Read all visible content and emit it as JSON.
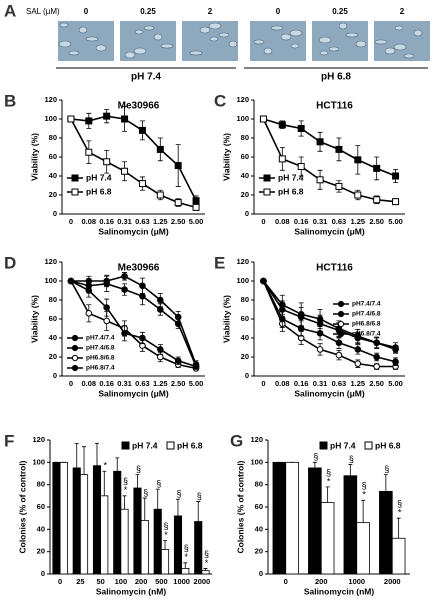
{
  "panel_a": {
    "label": "A",
    "sal_label": "SAL (μM)",
    "concentrations": [
      "0",
      "0.25",
      "2",
      "0",
      "0.25",
      "2"
    ],
    "groups": [
      "pH 7.4",
      "pH 6.8"
    ]
  },
  "chart_data": [
    {
      "type": "line",
      "panel": "B",
      "title": "Me30966",
      "x_label": "Salinomycin (μM)",
      "y_label": "Viability (%)",
      "categories": [
        "0",
        "0.08",
        "0.16",
        "0.31",
        "0.63",
        "1.25",
        "2.50",
        "5.00"
      ],
      "ylim": [
        0,
        120
      ],
      "yticks": [
        0,
        20,
        40,
        60,
        80,
        100,
        120
      ],
      "legend": "lower left",
      "series": [
        {
          "name": "pH 7.4",
          "color": "#000000",
          "marker": "square",
          "fill": "#000000",
          "values": [
            100,
            98,
            103,
            100,
            88,
            68,
            51,
            14
          ],
          "errors": [
            0,
            8,
            7,
            13,
            10,
            12,
            22,
            5
          ]
        },
        {
          "name": "pH 6.8",
          "color": "#000000",
          "marker": "square",
          "fill": "#ffffff",
          "values": [
            100,
            65,
            55,
            45,
            32,
            20,
            12,
            7
          ],
          "errors": [
            0,
            12,
            12,
            10,
            7,
            5,
            4,
            3
          ]
        }
      ]
    },
    {
      "type": "line",
      "panel": "C",
      "title": "HCT116",
      "x_label": "Salinomycin (μM)",
      "y_label": "Viability (%)",
      "categories": [
        "0",
        "0.08",
        "0.16",
        "0.31",
        "0.63",
        "1.25",
        "2.50",
        "5.00"
      ],
      "ylim": [
        0,
        120
      ],
      "yticks": [
        0,
        20,
        40,
        60,
        80,
        100,
        120
      ],
      "legend": "lower left",
      "series": [
        {
          "name": "pH 7.4",
          "color": "#000000",
          "marker": "square",
          "fill": "#000000",
          "values": [
            100,
            94,
            90,
            76,
            68,
            57,
            48,
            40
          ],
          "errors": [
            0,
            4,
            8,
            10,
            12,
            15,
            12,
            7
          ]
        },
        {
          "name": "pH 6.8",
          "color": "#000000",
          "marker": "square",
          "fill": "#ffffff",
          "values": [
            100,
            58,
            50,
            36,
            29,
            20,
            15,
            13
          ],
          "errors": [
            0,
            12,
            10,
            10,
            6,
            5,
            4,
            3
          ]
        }
      ]
    },
    {
      "type": "line",
      "panel": "D",
      "title": "Me30966",
      "x_label": "Salinomycin (μM)",
      "y_label": "Viability (%)",
      "categories": [
        "0",
        "0.08",
        "0.16",
        "0.31",
        "0.63",
        "1.25",
        "2.50",
        "5.00"
      ],
      "ylim": [
        0,
        120
      ],
      "yticks": [
        0,
        20,
        40,
        60,
        80,
        100,
        120
      ],
      "legend": "lower left",
      "series": [
        {
          "name": "pH7.4/7.4",
          "color": "#000000",
          "marker": "circle",
          "fill": "#000000",
          "values": [
            100,
            100,
            100,
            105,
            95,
            80,
            62,
            12
          ],
          "errors": [
            0,
            5,
            6,
            4,
            8,
            7,
            6,
            4
          ]
        },
        {
          "name": "pH7.4/6.8",
          "color": "#000000",
          "marker": "circle",
          "fill": "#000000",
          "values": [
            100,
            95,
            97,
            91,
            84,
            70,
            55,
            10
          ],
          "errors": [
            0,
            6,
            8,
            6,
            9,
            6,
            5,
            3
          ]
        },
        {
          "name": "pH6.8/6.8",
          "color": "#000000",
          "marker": "circle",
          "fill": "#ffffff",
          "values": [
            100,
            66,
            58,
            50,
            32,
            20,
            12,
            8
          ],
          "errors": [
            0,
            9,
            10,
            8,
            6,
            5,
            3,
            2
          ]
        },
        {
          "name": "pH6.8/7.4",
          "color": "#000000",
          "marker": "circle",
          "fill": "#000000",
          "values": [
            100,
            90,
            72,
            45,
            40,
            28,
            16,
            10
          ],
          "errors": [
            0,
            7,
            9,
            8,
            6,
            5,
            4,
            3
          ]
        }
      ]
    },
    {
      "type": "line",
      "panel": "E",
      "title": "HCT116",
      "x_label": "Salinomycin (μM)",
      "y_label": "Viability (%)",
      "categories": [
        "0",
        "0.08",
        "0.16",
        "0.31",
        "0.63",
        "1.25",
        "2.50",
        "5.00"
      ],
      "ylim": [
        0,
        120
      ],
      "yticks": [
        0,
        20,
        40,
        60,
        80,
        100,
        120
      ],
      "legend": "center right",
      "series": [
        {
          "name": "pH7.4/7.4",
          "color": "#000000",
          "marker": "circle",
          "fill": "#000000",
          "values": [
            100,
            75,
            65,
            60,
            50,
            42,
            35,
            30
          ],
          "errors": [
            0,
            10,
            12,
            10,
            8,
            7,
            6,
            5
          ]
        },
        {
          "name": "pH7.4/6.8",
          "color": "#000000",
          "marker": "circle",
          "fill": "#000000",
          "values": [
            100,
            70,
            62,
            55,
            48,
            40,
            35,
            28
          ],
          "errors": [
            0,
            9,
            10,
            9,
            8,
            6,
            5,
            4
          ]
        },
        {
          "name": "pH6.8/6.8",
          "color": "#000000",
          "marker": "circle",
          "fill": "#ffffff",
          "values": [
            100,
            55,
            40,
            28,
            22,
            13,
            10,
            10
          ],
          "errors": [
            0,
            8,
            7,
            6,
            5,
            4,
            3,
            3
          ]
        },
        {
          "name": "pH6.8/7.4",
          "color": "#000000",
          "marker": "circle",
          "fill": "#000000",
          "values": [
            100,
            60,
            50,
            45,
            35,
            28,
            20,
            15
          ],
          "errors": [
            0,
            9,
            8,
            7,
            6,
            5,
            4,
            4
          ]
        }
      ]
    },
    {
      "type": "bar",
      "panel": "F",
      "x_label": "Salinomycin (nM)",
      "y_label": "Colonies (% of control)",
      "categories": [
        "0",
        "25",
        "50",
        "100",
        "200",
        "500",
        "1000",
        "2000"
      ],
      "ylim": [
        0,
        120
      ],
      "yticks": [
        0,
        20,
        40,
        60,
        80,
        100,
        120
      ],
      "legend": "upper right",
      "series": [
        {
          "name": "pH 7.4",
          "color": "#000000",
          "fill": "#000000",
          "values": [
            100,
            95,
            97,
            92,
            77,
            58,
            52,
            47
          ],
          "errors": [
            0,
            22,
            20,
            12,
            12,
            18,
            15,
            18
          ],
          "significance": [
            null,
            null,
            null,
            null,
            [
              "§"
            ],
            [
              "§"
            ],
            [
              "§"
            ],
            [
              "§"
            ]
          ]
        },
        {
          "name": "pH 6.8",
          "color": "#000000",
          "fill": "#ffffff",
          "values": [
            100,
            89,
            70,
            58,
            48,
            22,
            5,
            3
          ],
          "errors": [
            0,
            25,
            22,
            12,
            20,
            8,
            5,
            2
          ],
          "significance": [
            null,
            null,
            [
              "*"
            ],
            [
              "§",
              "*"
            ],
            [
              "§"
            ],
            [
              "§",
              "*"
            ],
            [
              "§",
              "*"
            ],
            [
              "§",
              "*"
            ]
          ]
        }
      ]
    },
    {
      "type": "bar",
      "panel": "G",
      "x_label": "Salinomycin (nM)",
      "y_label": "Colonies (% of control)",
      "categories": [
        "0",
        "200",
        "1000",
        "2000"
      ],
      "ylim": [
        0,
        120
      ],
      "yticks": [
        0,
        20,
        40,
        60,
        80,
        100,
        120
      ],
      "legend": "upper right",
      "series": [
        {
          "name": "pH 7.4",
          "color": "#000000",
          "fill": "#000000",
          "values": [
            100,
            95,
            88,
            74
          ],
          "errors": [
            0,
            5,
            10,
            15
          ],
          "significance": [
            null,
            [
              "§"
            ],
            [
              "§"
            ],
            [
              "§"
            ]
          ]
        },
        {
          "name": "pH 6.8",
          "color": "#000000",
          "fill": "#ffffff",
          "values": [
            100,
            64,
            46,
            32
          ],
          "errors": [
            0,
            14,
            20,
            18
          ],
          "significance": [
            null,
            [
              "§",
              "*"
            ],
            [
              "§",
              "*"
            ],
            [
              "§",
              "*"
            ]
          ]
        }
      ]
    }
  ]
}
